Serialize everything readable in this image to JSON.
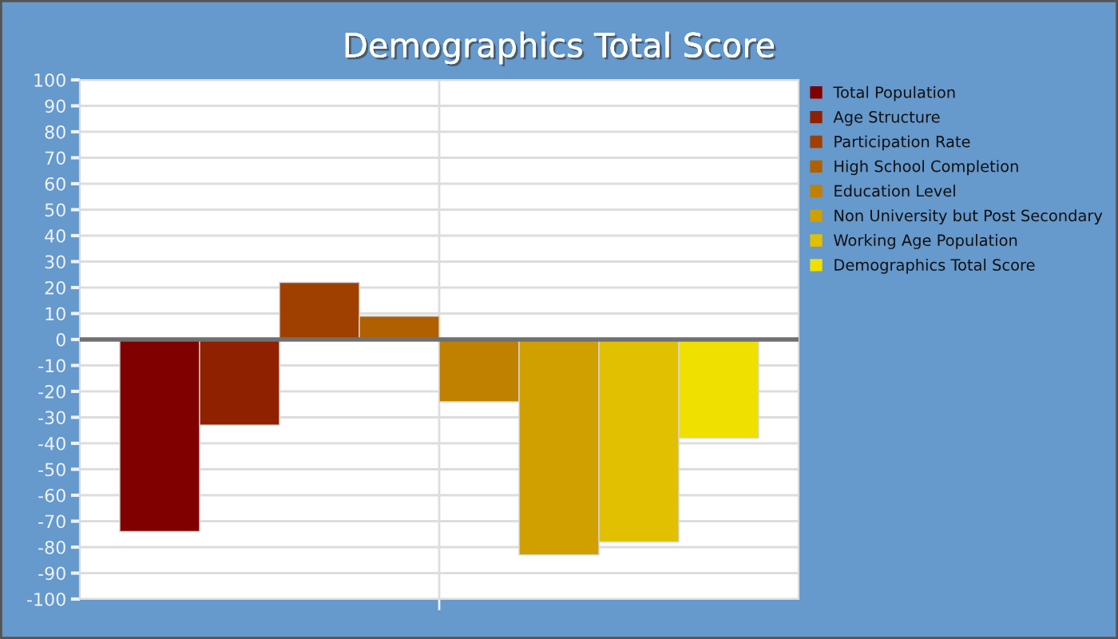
{
  "chart_data": {
    "type": "bar",
    "title": "Demographics Total Score",
    "categories": [
      null
    ],
    "series": [
      {
        "name": "Total Population",
        "color": "#800000",
        "values": [
          -74
        ]
      },
      {
        "name": "Age Structure",
        "color": "#8f2000",
        "values": [
          -33
        ]
      },
      {
        "name": "Participation Rate",
        "color": "#a04000",
        "values": [
          22
        ]
      },
      {
        "name": "High School Completion",
        "color": "#b06000",
        "values": [
          9
        ]
      },
      {
        "name": "Education Level",
        "color": "#c08000",
        "values": [
          -24
        ]
      },
      {
        "name": "Non University but Post Secondary",
        "color": "#d0a000",
        "values": [
          -83
        ]
      },
      {
        "name": "Working Age Population",
        "color": "#e0c000",
        "values": [
          -78
        ]
      },
      {
        "name": "Demographics Total Score",
        "color": "#f0e000",
        "values": [
          -38
        ]
      }
    ],
    "ylim": [
      -100,
      100
    ],
    "yticks": [
      -100,
      -90,
      -80,
      -70,
      -60,
      -50,
      -40,
      -30,
      -20,
      -10,
      0,
      10,
      20,
      30,
      40,
      50,
      60,
      70,
      80,
      90,
      100
    ],
    "grid": true,
    "legend": "right",
    "tick_labels": "y",
    "ref_lines": [
      {
        "axis": "y",
        "value": 0,
        "color": "#707070"
      }
    ]
  }
}
